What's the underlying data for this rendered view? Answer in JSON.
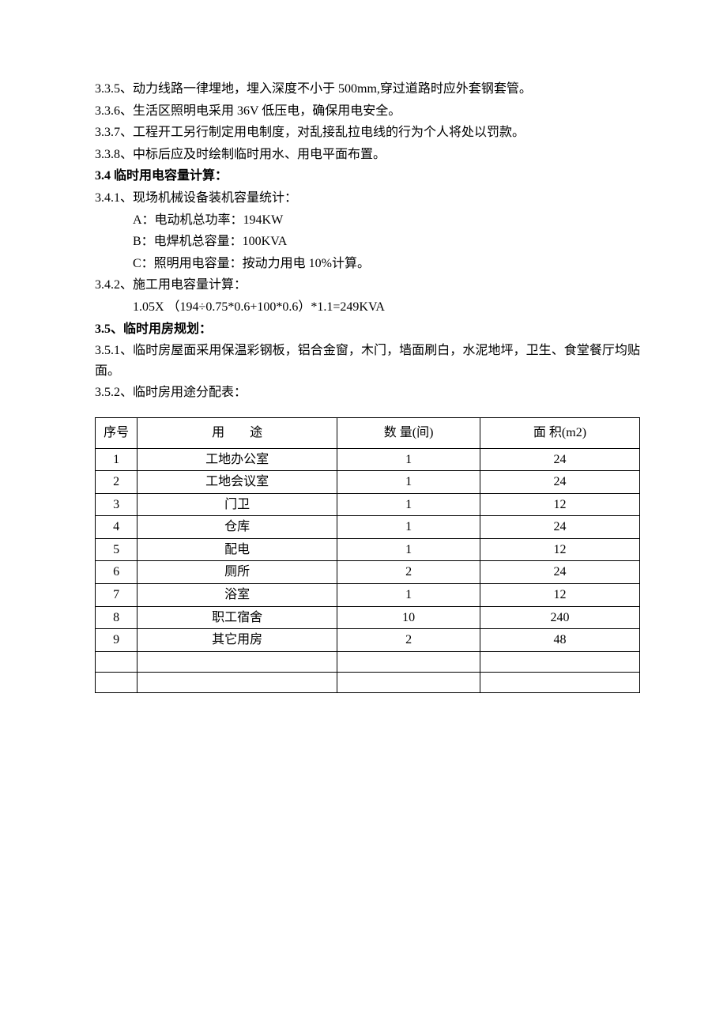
{
  "paragraphs": {
    "p335": "3.3.5、动力线路一律埋地，埋入深度不小于 500mm,穿过道路时应外套钢套管。",
    "p336": "3.3.6、生活区照明电采用 36V 低压电，确保用电安全。",
    "p337": "3.3.7、工程开工另行制定用电制度，对乱接乱拉电线的行为个人将处以罚款。",
    "p338": "3.3.8、中标后应及时绘制临时用水、用电平面布置。",
    "h34": "3.4 临时用电容量计算：",
    "p341": "3.4.1、现场机械设备装机容量统计：",
    "p341a": "A：电动机总功率：194KW",
    "p341b": "B：电焊机总容量：100KVA",
    "p341c": "C：照明用电容量：按动力用电 10%计算。",
    "p342": "3.4.2、施工用电容量计算：",
    "p342calc": "1.05X  （194÷0.75*0.6+100*0.6）*1.1=249KVA",
    "h35": "3.5、临时用房规划：",
    "p351": "3.5.1、临时房屋面采用保温彩钢板，铝合金窗，木门，墙面刷白，水泥地坪，卫生、食堂餐厅均贴面。",
    "p352": "3.5.2、临时房用途分配表："
  },
  "table": {
    "headers": {
      "seq": "序号",
      "usage": "用　　途",
      "qty": "数 量(间)",
      "area": "面 积(m2)"
    },
    "rows": [
      {
        "seq": "1",
        "usage": "工地办公室",
        "qty": "1",
        "area": "24"
      },
      {
        "seq": "2",
        "usage": "工地会议室",
        "qty": "1",
        "area": "24"
      },
      {
        "seq": "3",
        "usage": "门卫",
        "qty": "1",
        "area": "12"
      },
      {
        "seq": "4",
        "usage": "仓库",
        "qty": "1",
        "area": "24"
      },
      {
        "seq": "5",
        "usage": "配电",
        "qty": "1",
        "area": "12"
      },
      {
        "seq": "6",
        "usage": "厕所",
        "qty": "2",
        "area": "24"
      },
      {
        "seq": "7",
        "usage": "浴室",
        "qty": "1",
        "area": "12"
      },
      {
        "seq": "8",
        "usage": "职工宿舍",
        "qty": "10",
        "area": "240"
      },
      {
        "seq": "9",
        "usage": "其它用房",
        "qty": "2",
        "area": "48"
      }
    ],
    "empty_rows": 2,
    "styling": {
      "border_color": "#000000",
      "text_align": "center",
      "font_size": 16
    }
  }
}
